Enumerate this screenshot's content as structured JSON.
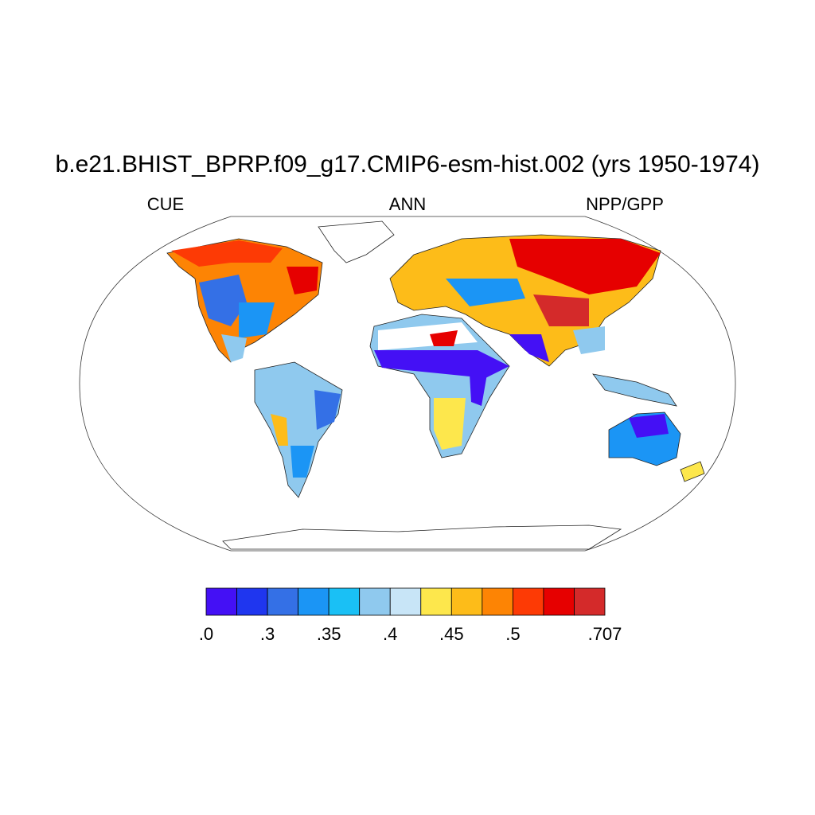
{
  "title": "b.e21.BHIST_BPRP.f09_g17.CMIP6-esm-hist.002 (yrs 1950-1974)",
  "left_label": "CUE",
  "center_label": "ANN",
  "right_label": "NPP/GPP",
  "colorbar": {
    "colors": [
      "#4410f5",
      "#1f36ef",
      "#3470e6",
      "#1b95f5",
      "#1ac0f5",
      "#8fc9ee",
      "#c8e5f7",
      "#fde74c",
      "#fdbc19",
      "#fd8404",
      "#fd3a05",
      "#e60000",
      "#d42a2a"
    ],
    "ticks": [
      {
        "value": 0,
        "label": ".0"
      },
      {
        "value": 0.3,
        "label": ".3"
      },
      {
        "value": 0.35,
        "label": ".35"
      },
      {
        "value": 0.4,
        "label": ".4"
      },
      {
        "value": 0.45,
        "label": ".45"
      },
      {
        "value": 0.5,
        "label": ".5"
      },
      {
        "value": 0.707,
        "label": ".707"
      }
    ]
  }
}
